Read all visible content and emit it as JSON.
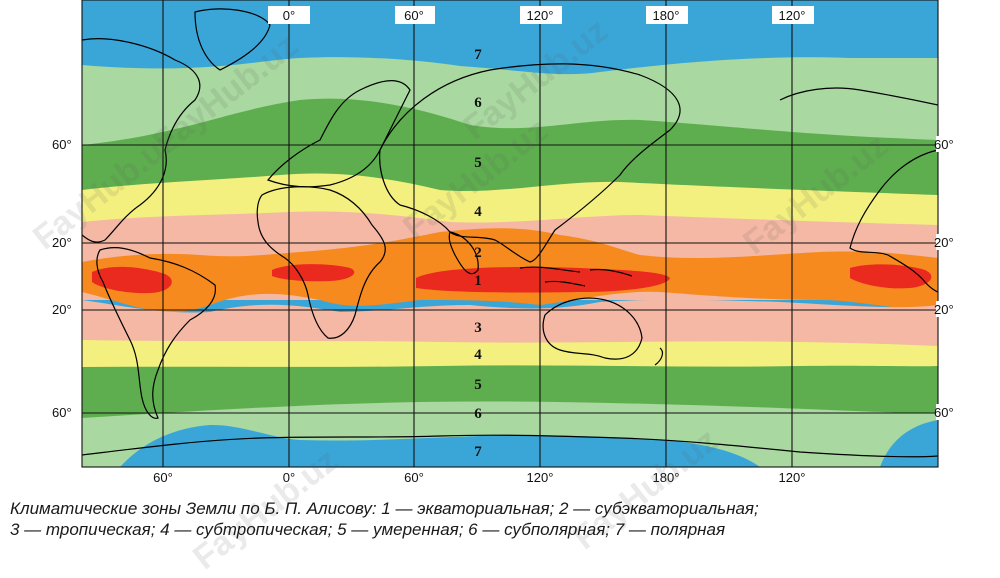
{
  "map": {
    "longitude_labels_top": [
      "0°",
      "60°",
      "120°",
      "180°",
      "120°"
    ],
    "longitude_labels_bottom": [
      "60°",
      "0°",
      "60°",
      "120°",
      "180°",
      "120°"
    ],
    "latitude_labels_left": [
      "60°",
      "20°",
      "20°",
      "60°"
    ],
    "latitude_labels_right": [
      "60°",
      "20°",
      "20°",
      "60°"
    ],
    "zone_numbers_north": [
      "7",
      "6",
      "5",
      "4",
      "2",
      "1"
    ],
    "zone_numbers_south": [
      "3",
      "4",
      "5",
      "6",
      "7"
    ],
    "zone_colors": {
      "polar": "#3aa6d8",
      "subpolar": "#a9d8a0",
      "temperate": "#5eae4f",
      "subtropical": "#f3f07f",
      "tropical": "#f4b8a4",
      "subequatorial": "#f68a1e",
      "equatorial": "#ea2a1e"
    }
  },
  "caption": {
    "line1": "Климатические зоны Земли по Б. П. Алисову: 1 — экваториальная; 2 — субэкваториальная;",
    "line2": "3 — тропическая; 4 — субтропическая; 5 — умеренная; 6 — субполярная; 7 — полярная"
  },
  "watermark": {
    "text": "FayHub.uz"
  }
}
